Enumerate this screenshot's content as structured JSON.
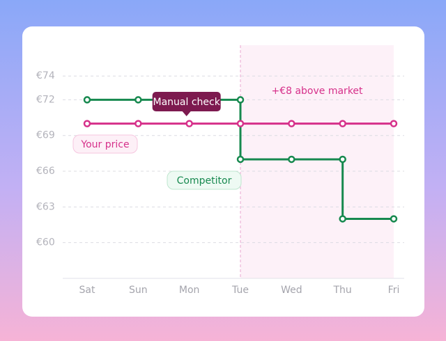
{
  "chart_data": {
    "type": "step-line",
    "categories": [
      "Sat",
      "Sun",
      "Mon",
      "Tue",
      "Wed",
      "Thu",
      "Fri"
    ],
    "series": [
      {
        "name": "Your price",
        "color": "#d6308a",
        "values": [
          70,
          70,
          70,
          70,
          70,
          70,
          70
        ]
      },
      {
        "name": "Competitor",
        "color": "#17894f",
        "values": [
          72,
          72,
          72,
          67,
          67,
          62,
          62
        ]
      }
    ],
    "ylim": [
      57,
      76
    ],
    "yticks": [
      {
        "value": 60,
        "label": "€60"
      },
      {
        "value": 63,
        "label": "€63"
      },
      {
        "value": 66,
        "label": "€66"
      },
      {
        "value": 69,
        "label": "€69"
      },
      {
        "value": 72,
        "label": "€72"
      },
      {
        "value": 74,
        "label": "€74"
      }
    ],
    "grid": true,
    "highlight": {
      "from": "Tue",
      "to": "Fri",
      "label": "+€8 above market",
      "color": "#fdf1f8"
    },
    "tooltip": {
      "category": "Mon",
      "label": "Manual check"
    }
  }
}
